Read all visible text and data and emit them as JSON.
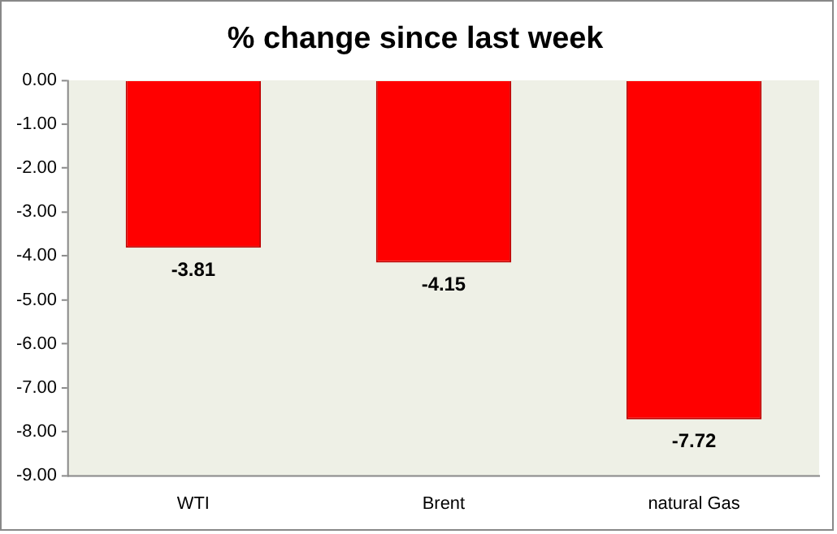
{
  "chart_data": {
    "type": "bar",
    "title": "% change since last week",
    "categories": [
      "WTI",
      "Brent",
      "natural Gas"
    ],
    "values": [
      -3.81,
      -4.15,
      -7.72
    ],
    "color": "#ff0000",
    "ylim": [
      -9,
      0
    ],
    "yticks": [
      {
        "value": 0,
        "label": "0.00"
      },
      {
        "value": -1,
        "label": "-1.00"
      },
      {
        "value": -2,
        "label": "-2.00"
      },
      {
        "value": -3,
        "label": "-3.00"
      },
      {
        "value": -4,
        "label": "-4.00"
      },
      {
        "value": -5,
        "label": "-5.00"
      },
      {
        "value": -6,
        "label": "-6.00"
      },
      {
        "value": -7,
        "label": "-7.00"
      },
      {
        "value": -8,
        "label": "-8.00"
      },
      {
        "value": -9,
        "label": "-9.00"
      }
    ],
    "data_labels": true,
    "grid": false,
    "legend": false
  }
}
